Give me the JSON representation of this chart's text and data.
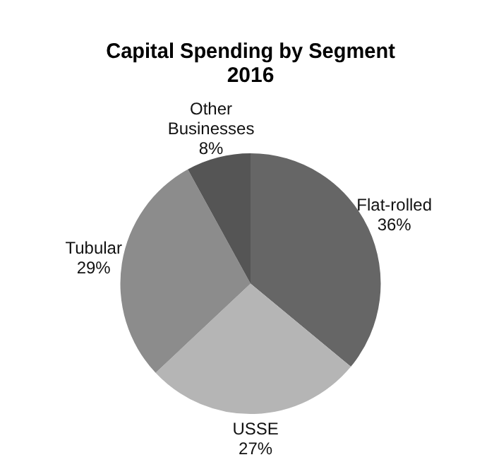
{
  "chart_data": {
    "type": "pie",
    "title": "Capital Spending by Segment\n2016",
    "categories": [
      "Flat-rolled",
      "USSE",
      "Tubular",
      "Other Businesses"
    ],
    "values": [
      36,
      27,
      29,
      8
    ],
    "colors": [
      "#666666",
      "#b5b5b5",
      "#8c8c8c",
      "#555555"
    ],
    "value_labels": [
      "36%",
      "27%",
      "29%",
      "8%"
    ],
    "legend": false
  }
}
